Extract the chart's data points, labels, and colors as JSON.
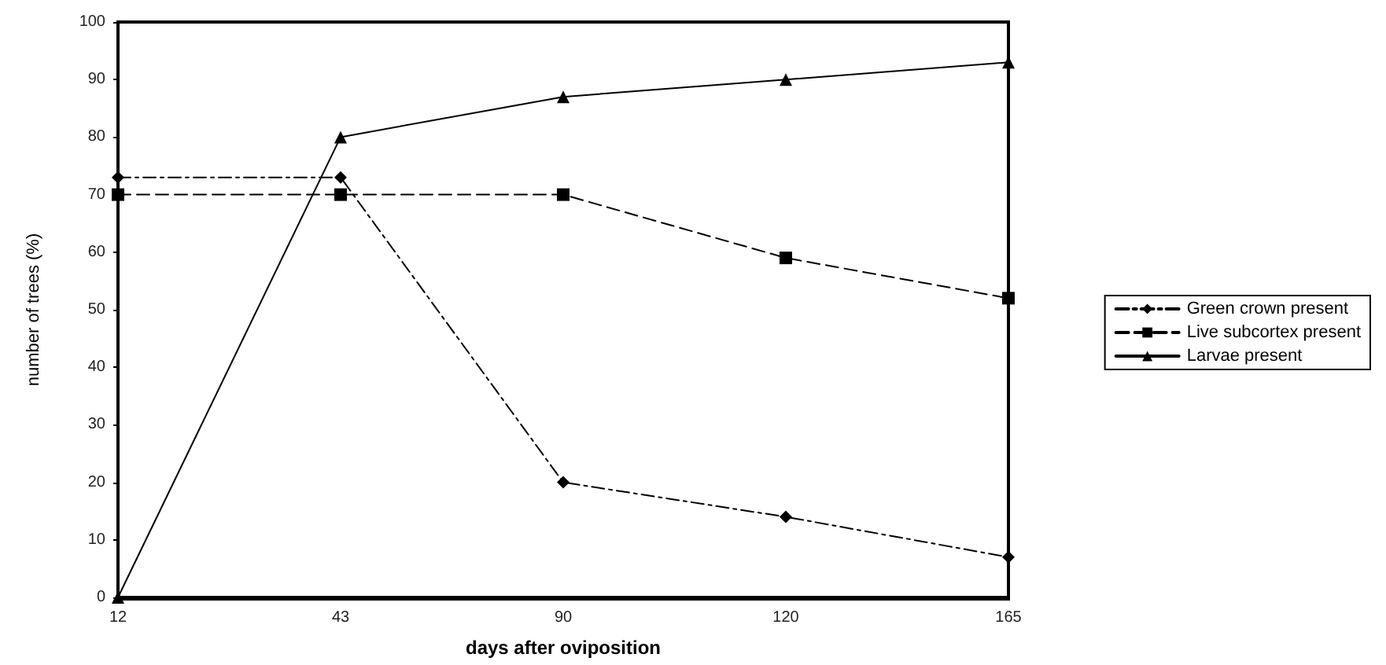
{
  "chart_data": {
    "type": "line",
    "xlabel": "days after oviposition",
    "ylabel": "number of trees (%)",
    "categories": [
      "12",
      "43",
      "90",
      "120",
      "165"
    ],
    "ylim": [
      0,
      100
    ],
    "yticks": [
      0,
      10,
      20,
      30,
      40,
      50,
      60,
      70,
      80,
      90,
      100
    ],
    "grid": false,
    "legend": "right",
    "series": [
      {
        "name": "Green crown present",
        "color": "#000000",
        "values": [
          73,
          73,
          20,
          14,
          7
        ],
        "marker": "diamond",
        "line_style": "dashdot"
      },
      {
        "name": "Live subcortex present",
        "color": "#000000",
        "values": [
          70,
          70,
          70,
          59,
          52
        ],
        "marker": "square",
        "line_style": "dashed"
      },
      {
        "name": "Larvae present",
        "color": "#000000",
        "values": [
          0,
          80,
          87,
          90,
          93
        ],
        "marker": "triangle",
        "line_style": "solid"
      }
    ]
  }
}
